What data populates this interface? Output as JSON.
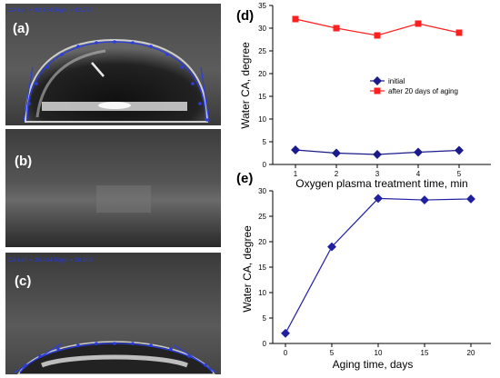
{
  "panels": {
    "a": {
      "label": "(a)",
      "caption": "CA Left = 92.154 Right = 92.772"
    },
    "b": {
      "label": "(b)"
    },
    "c": {
      "label": "(c)",
      "caption": "CA Left = 28.414 Right = 28.803"
    },
    "d": {
      "label": "(d)"
    },
    "e": {
      "label": "(e)"
    }
  },
  "colors": {
    "initial": "#1a1a8c",
    "aged": "#ff1f1f",
    "aging_line": "#2020a0"
  },
  "chart_data": [
    {
      "type": "line",
      "panel": "(d)",
      "x": [
        1,
        2,
        3,
        4,
        5
      ],
      "series": [
        {
          "name": "initial",
          "values": [
            3.2,
            2.5,
            2.2,
            2.7,
            3.1
          ]
        },
        {
          "name": "after 20 days of aging",
          "values": [
            32,
            30,
            28.4,
            31,
            29
          ]
        }
      ],
      "xlabel": "Oxygen plasma treatment time, min",
      "ylabel": "Water CA, degree",
      "xticks": [
        "1",
        "2",
        "3",
        "4",
        "5"
      ],
      "yticks": [
        "0",
        "5",
        "10",
        "15",
        "20",
        "25",
        "30",
        "35"
      ],
      "ylim": [
        0,
        35
      ],
      "grid": false,
      "legend_position": "center-right"
    },
    {
      "type": "line",
      "panel": "(e)",
      "x": [
        0,
        5,
        10,
        15,
        20
      ],
      "series": [
        {
          "values": [
            2,
            19,
            28.5,
            28.2,
            28.4
          ]
        }
      ],
      "xlabel": "Aging time, days",
      "ylabel": "Water CA, degree",
      "xticks": [
        "0",
        "5",
        "10",
        "15",
        "20"
      ],
      "yticks": [
        "0",
        "5",
        "10",
        "15",
        "20",
        "25",
        "30"
      ],
      "ylim": [
        0,
        30
      ],
      "grid": false
    }
  ]
}
